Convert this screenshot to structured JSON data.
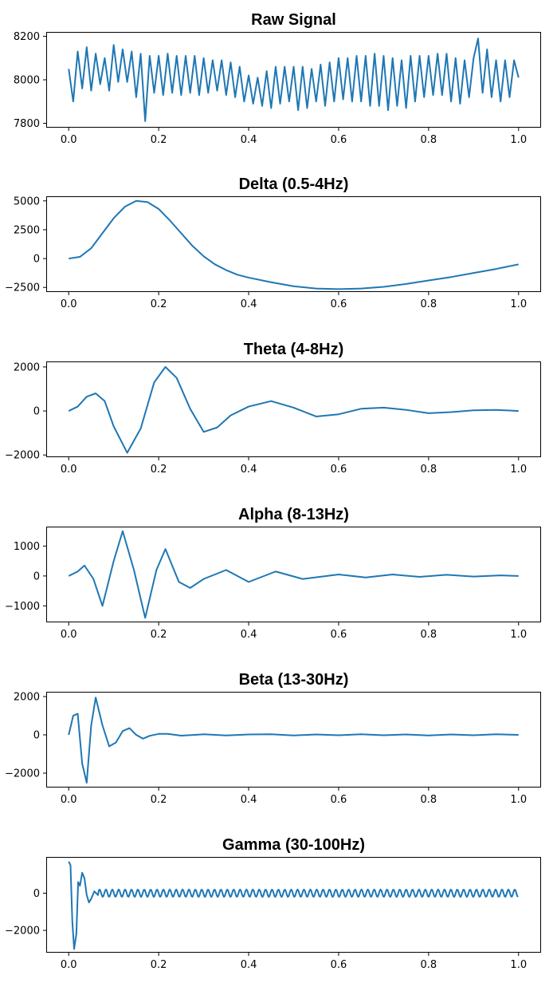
{
  "chart_data": [
    {
      "type": "line",
      "title": "Raw Signal",
      "xlabel": "",
      "ylabel": "",
      "xlim": [
        0.0,
        1.0
      ],
      "ylim": [
        7780,
        8220
      ],
      "xticks": [
        0.0,
        0.2,
        0.4,
        0.6,
        0.8,
        1.0
      ],
      "xtick_labels": [
        "0.0",
        "0.2",
        "0.4",
        "0.6",
        "0.8",
        "1.0"
      ],
      "yticks": [
        7800,
        8000,
        8200
      ],
      "ytick_labels": [
        "7800",
        "8000",
        "8200"
      ],
      "series": [
        {
          "name": "Raw Signal",
          "color": "#1f77b4",
          "x": [
            0.0,
            0.01,
            0.02,
            0.03,
            0.04,
            0.05,
            0.06,
            0.07,
            0.08,
            0.09,
            0.1,
            0.11,
            0.12,
            0.13,
            0.14,
            0.15,
            0.16,
            0.17,
            0.18,
            0.19,
            0.2,
            0.21,
            0.22,
            0.23,
            0.24,
            0.25,
            0.26,
            0.27,
            0.28,
            0.29,
            0.3,
            0.31,
            0.32,
            0.33,
            0.34,
            0.35,
            0.36,
            0.37,
            0.38,
            0.39,
            0.4,
            0.41,
            0.42,
            0.43,
            0.44,
            0.45,
            0.46,
            0.47,
            0.48,
            0.49,
            0.5,
            0.51,
            0.52,
            0.53,
            0.54,
            0.55,
            0.56,
            0.57,
            0.58,
            0.59,
            0.6,
            0.61,
            0.62,
            0.63,
            0.64,
            0.65,
            0.66,
            0.67,
            0.68,
            0.69,
            0.7,
            0.71,
            0.72,
            0.73,
            0.74,
            0.75,
            0.76,
            0.77,
            0.78,
            0.79,
            0.8,
            0.81,
            0.82,
            0.83,
            0.84,
            0.85,
            0.86,
            0.87,
            0.88,
            0.89,
            0.9,
            0.91,
            0.92,
            0.93,
            0.94,
            0.95,
            0.96,
            0.97,
            0.98,
            0.99,
            1.0
          ],
          "y": [
            8050,
            7900,
            8130,
            7960,
            8150,
            7950,
            8120,
            7980,
            8100,
            7950,
            8160,
            7990,
            8140,
            7990,
            8130,
            7920,
            8120,
            7810,
            8110,
            7940,
            8110,
            7930,
            8120,
            7940,
            8110,
            7930,
            8110,
            7940,
            8110,
            7930,
            8100,
            7940,
            8090,
            7950,
            8090,
            7930,
            8080,
            7920,
            8060,
            7900,
            8020,
            7890,
            8010,
            7880,
            8040,
            7870,
            8060,
            7890,
            8060,
            7900,
            8060,
            7860,
            8060,
            7870,
            8050,
            7900,
            8070,
            7880,
            8080,
            7900,
            8100,
            7910,
            8100,
            7900,
            8110,
            7900,
            8110,
            7880,
            8120,
            7880,
            8110,
            7860,
            8100,
            7880,
            8090,
            7870,
            8110,
            7900,
            8110,
            7920,
            8110,
            7930,
            8120,
            7930,
            8120,
            7900,
            8100,
            7890,
            8090,
            7920,
            8100,
            8190,
            7940,
            8140,
            7920,
            8090,
            7900,
            8090,
            7920,
            8090,
            8010
          ]
        }
      ]
    },
    {
      "type": "line",
      "title": "Delta (0.5-4Hz)",
      "xlabel": "",
      "ylabel": "",
      "xlim": [
        0.0,
        1.0
      ],
      "ylim": [
        -2900,
        5400
      ],
      "xticks": [
        0.0,
        0.2,
        0.4,
        0.6,
        0.8,
        1.0
      ],
      "xtick_labels": [
        "0.0",
        "0.2",
        "0.4",
        "0.6",
        "0.8",
        "1.0"
      ],
      "yticks": [
        -2500,
        0,
        2500,
        5000
      ],
      "ytick_labels": [
        "−2500",
        "0",
        "2500",
        "5000"
      ],
      "series": [
        {
          "name": "Delta (0.5-4Hz)",
          "color": "#1f77b4",
          "x": [
            0.0,
            0.025,
            0.05,
            0.075,
            0.1,
            0.125,
            0.15,
            0.175,
            0.2,
            0.225,
            0.25,
            0.275,
            0.3,
            0.325,
            0.35,
            0.375,
            0.4,
            0.45,
            0.5,
            0.55,
            0.6,
            0.65,
            0.7,
            0.75,
            0.8,
            0.85,
            0.9,
            0.95,
            1.0
          ],
          "y": [
            0,
            150,
            900,
            2200,
            3500,
            4500,
            5000,
            4900,
            4300,
            3300,
            2200,
            1100,
            200,
            -500,
            -1000,
            -1400,
            -1650,
            -2050,
            -2400,
            -2600,
            -2650,
            -2600,
            -2450,
            -2200,
            -1900,
            -1600,
            -1250,
            -900,
            -500
          ]
        }
      ]
    },
    {
      "type": "line",
      "title": "Theta (4-8Hz)",
      "xlabel": "",
      "ylabel": "",
      "xlim": [
        0.0,
        1.0
      ],
      "ylim": [
        -2100,
        2250
      ],
      "xticks": [
        0.0,
        0.2,
        0.4,
        0.6,
        0.8,
        1.0
      ],
      "xtick_labels": [
        "0.0",
        "0.2",
        "0.4",
        "0.6",
        "0.8",
        "1.0"
      ],
      "yticks": [
        -2000,
        0,
        2000
      ],
      "ytick_labels": [
        "−2000",
        "0",
        "2000"
      ],
      "series": [
        {
          "name": "Theta (4-8Hz)",
          "color": "#1f77b4",
          "x": [
            0.0,
            0.02,
            0.04,
            0.06,
            0.08,
            0.1,
            0.13,
            0.16,
            0.19,
            0.215,
            0.24,
            0.27,
            0.3,
            0.33,
            0.36,
            0.4,
            0.45,
            0.5,
            0.55,
            0.6,
            0.65,
            0.7,
            0.75,
            0.8,
            0.85,
            0.9,
            0.95,
            1.0
          ],
          "y": [
            0,
            200,
            650,
            800,
            450,
            -700,
            -1900,
            -800,
            1300,
            2000,
            1500,
            100,
            -950,
            -750,
            -200,
            200,
            450,
            150,
            -250,
            -150,
            100,
            150,
            50,
            -100,
            -50,
            30,
            50,
            0
          ]
        }
      ]
    },
    {
      "type": "line",
      "title": "Alpha (8-13Hz)",
      "xlabel": "",
      "ylabel": "",
      "xlim": [
        0.0,
        1.0
      ],
      "ylim": [
        -1550,
        1650
      ],
      "xticks": [
        0.0,
        0.2,
        0.4,
        0.6,
        0.8,
        1.0
      ],
      "xtick_labels": [
        "0.0",
        "0.2",
        "0.4",
        "0.6",
        "0.8",
        "1.0"
      ],
      "yticks": [
        -1000,
        0,
        1000
      ],
      "ytick_labels": [
        "−1000",
        "0",
        "1000"
      ],
      "series": [
        {
          "name": "Alpha (8-13Hz)",
          "color": "#1f77b4",
          "x": [
            0.0,
            0.02,
            0.035,
            0.055,
            0.075,
            0.1,
            0.12,
            0.145,
            0.17,
            0.195,
            0.215,
            0.245,
            0.27,
            0.3,
            0.35,
            0.4,
            0.46,
            0.52,
            0.6,
            0.66,
            0.72,
            0.78,
            0.84,
            0.9,
            0.96,
            1.0
          ],
          "y": [
            0,
            150,
            350,
            -100,
            -1000,
            500,
            1500,
            200,
            -1400,
            200,
            900,
            -200,
            -400,
            -100,
            200,
            -200,
            150,
            -100,
            50,
            -50,
            50,
            -30,
            40,
            -20,
            20,
            0
          ]
        }
      ]
    },
    {
      "type": "line",
      "title": "Beta (13-30Hz)",
      "xlabel": "",
      "ylabel": "",
      "xlim": [
        0.0,
        1.0
      ],
      "ylim": [
        -2750,
        2250
      ],
      "xticks": [
        0.0,
        0.2,
        0.4,
        0.6,
        0.8,
        1.0
      ],
      "xtick_labels": [
        "0.0",
        "0.2",
        "0.4",
        "0.6",
        "0.8",
        "1.0"
      ],
      "yticks": [
        -2000,
        0,
        2000
      ],
      "ytick_labels": [
        "−2000",
        "0",
        "2000"
      ],
      "series": [
        {
          "name": "Beta (13-30Hz)",
          "color": "#1f77b4",
          "x": [
            0.0,
            0.01,
            0.02,
            0.03,
            0.04,
            0.05,
            0.06,
            0.075,
            0.09,
            0.105,
            0.12,
            0.135,
            0.15,
            0.165,
            0.18,
            0.2,
            0.22,
            0.25,
            0.3,
            0.35,
            0.4,
            0.45,
            0.5,
            0.55,
            0.6,
            0.65,
            0.7,
            0.75,
            0.8,
            0.85,
            0.9,
            0.95,
            1.0
          ],
          "y": [
            0,
            1000,
            1100,
            -1500,
            -2500,
            500,
            1950,
            500,
            -600,
            -400,
            200,
            350,
            0,
            -200,
            -50,
            50,
            50,
            -40,
            30,
            -30,
            20,
            30,
            -30,
            20,
            -20,
            30,
            -20,
            20,
            -30,
            20,
            -20,
            30,
            0
          ]
        }
      ]
    },
    {
      "type": "line",
      "title": "Gamma (30-100Hz)",
      "xlabel": "",
      "ylabel": "",
      "xlim": [
        0.0,
        1.0
      ],
      "ylim": [
        -3200,
        1950
      ],
      "xticks": [
        0.0,
        0.2,
        0.4,
        0.6,
        0.8,
        1.0
      ],
      "xtick_labels": [
        "0.0",
        "0.2",
        "0.4",
        "0.6",
        "0.8",
        "1.0"
      ],
      "yticks": [
        -2000,
        0
      ],
      "ytick_labels": [
        "−2000",
        "0"
      ],
      "series": [
        {
          "name": "Gamma (30-100Hz)",
          "color": "#1f77b4",
          "x": [
            0.0,
            0.004,
            0.008,
            0.012,
            0.017,
            0.021,
            0.025,
            0.03,
            0.035,
            0.04,
            0.045,
            0.05,
            0.057,
            0.065
          ],
          "y": [
            1700,
            1500,
            -1500,
            -3000,
            -2200,
            600,
            400,
            1100,
            800,
            -100,
            -500,
            -300,
            100,
            -100
          ],
          "oscillation_amplitude": 200,
          "oscillation_period": 0.0142
        }
      ]
    }
  ]
}
